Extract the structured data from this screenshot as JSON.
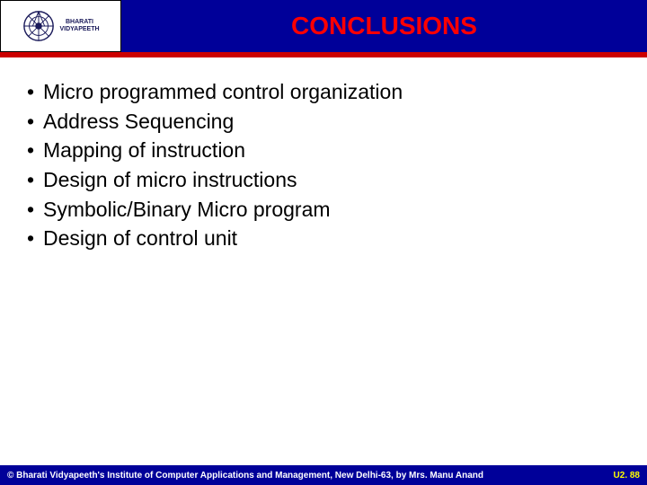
{
  "header": {
    "logo_line1": "BHARATI",
    "logo_line2": "VIDYAPEETH",
    "title": "CONCLUSIONS",
    "header_bg": "#000099",
    "title_color": "#ff0000",
    "redbar_color": "#cc0000"
  },
  "content": {
    "bullets": [
      "Micro programmed control organization",
      "Address Sequencing",
      "Mapping of instruction",
      "Design of micro instructions",
      "Symbolic/Binary Micro program",
      "Design of control unit"
    ],
    "bullet_fontsize": 23,
    "text_color": "#000000"
  },
  "footer": {
    "left": "© Bharati Vidyapeeth's Institute of Computer Applications and Management, New Delhi-63, by Mrs. Manu Anand",
    "right": "U2. 88",
    "bg": "#000099",
    "left_color": "#ffffff",
    "right_color": "#ffff00"
  }
}
